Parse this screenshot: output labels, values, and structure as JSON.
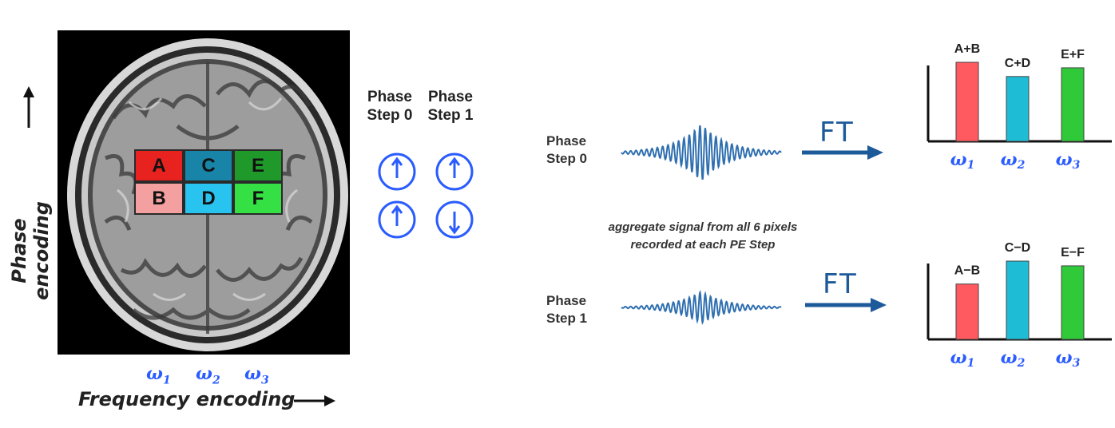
{
  "axes": {
    "phase_encoding": "Phase encoding",
    "frequency_encoding": "Frequency encoding"
  },
  "grid": {
    "cells": [
      {
        "label": "A",
        "color": "#e8231f"
      },
      {
        "label": "C",
        "color": "#1884a8"
      },
      {
        "label": "E",
        "color": "#1f9a2a"
      },
      {
        "label": "B",
        "color": "#f4a0a0"
      },
      {
        "label": "D",
        "color": "#29c3ef"
      },
      {
        "label": "F",
        "color": "#35e045"
      }
    ]
  },
  "omegas": [
    {
      "symbol": "ω",
      "sub": "1"
    },
    {
      "symbol": "ω",
      "sub": "2"
    },
    {
      "symbol": "ω",
      "sub": "3"
    }
  ],
  "phase_headers": [
    {
      "line1": "Phase",
      "line2": "Step 0"
    },
    {
      "line1": "Phase",
      "line2": "Step 1"
    }
  ],
  "signal_rows": [
    {
      "label_line1": "Phase",
      "label_line2": "Step 0",
      "transform": "FT"
    },
    {
      "label_line1": "Phase",
      "label_line2": "Step 1",
      "transform": "FT"
    }
  ],
  "caption": {
    "line1": "aggregate signal from all 6 pixels",
    "line2": "recorded at each PE Step"
  },
  "colors": {
    "accent_blue": "#2a5cff",
    "arrow_blue": "#1d5a9a",
    "bar_red": "#ff5a5f",
    "bar_cyan": "#1fbcd6",
    "bar_green": "#2fc93a"
  },
  "chart_data": [
    {
      "type": "bar",
      "categories": [
        "ω1",
        "ω2",
        "ω3"
      ],
      "data_labels": [
        "A+B",
        "C+D",
        "E+F"
      ],
      "values": [
        1.0,
        0.82,
        0.93
      ],
      "colors": [
        "#ff5a5f",
        "#1fbcd6",
        "#2fc93a"
      ]
    },
    {
      "type": "bar",
      "categories": [
        "ω1",
        "ω2",
        "ω3"
      ],
      "data_labels": [
        "A−B",
        "C−D",
        "E−F"
      ],
      "values": [
        0.7,
        0.99,
        0.93
      ],
      "colors": [
        "#ff5a5f",
        "#1fbcd6",
        "#2fc93a"
      ]
    }
  ]
}
